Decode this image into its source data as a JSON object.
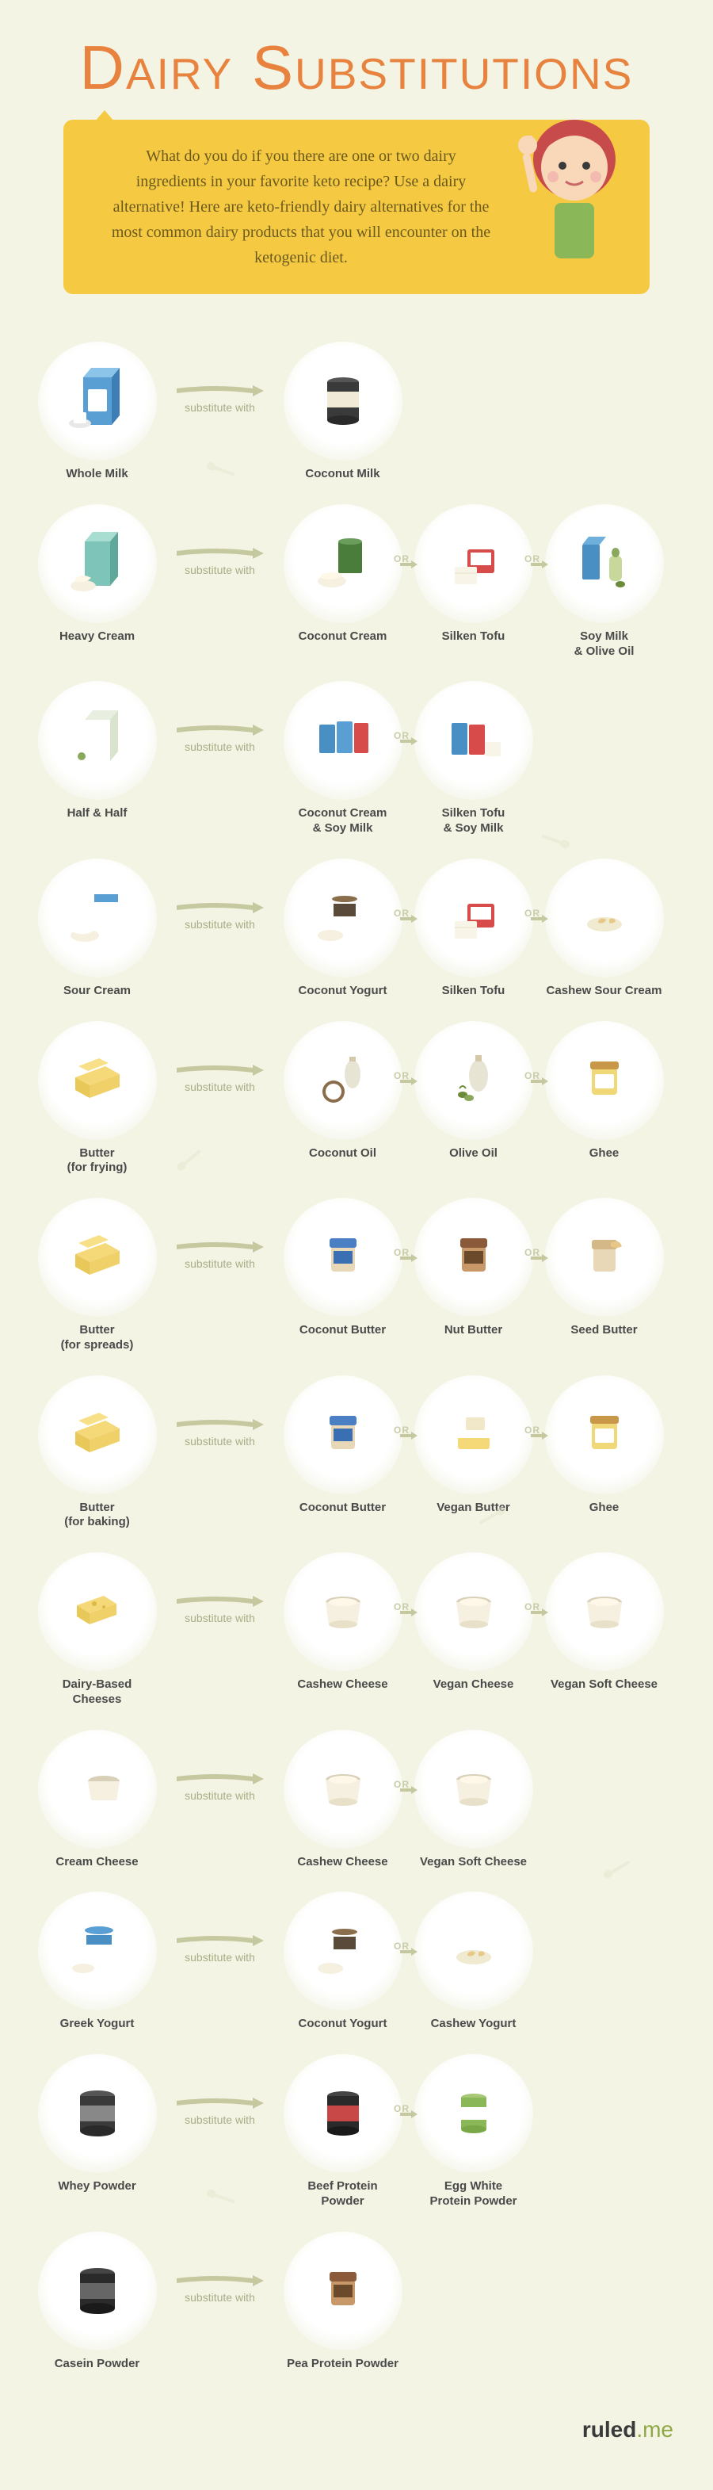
{
  "title": "Dairy Substitutions",
  "intro": "What do you do if you there are one or two dairy ingredients in your favorite keto recipe? Use a dairy alternative! Here are keto-friendly dairy alternatives for the most common dairy products that you will encounter on the ketogenic diet.",
  "arrow_label": "substitute with",
  "or_label": "OR",
  "footer_brand_a": "ruled",
  "footer_brand_b": ".me",
  "colors": {
    "bg": "#f3f4e4",
    "title": "#e8833f",
    "intro_bg": "#f5c941",
    "arrow": "#c6c99f",
    "label": "#4a4a4a"
  },
  "rows": [
    {
      "source": {
        "label": "Whole Milk",
        "icon": "milk-carton"
      },
      "subs": [
        {
          "label": "Coconut Milk",
          "icon": "can-dark"
        }
      ]
    },
    {
      "source": {
        "label": "Heavy Cream",
        "icon": "cream-carton"
      },
      "subs": [
        {
          "label": "Coconut Cream",
          "icon": "can-bowl"
        },
        {
          "label": "Silken Tofu",
          "icon": "tofu"
        },
        {
          "label": "Soy Milk\n& Olive Oil",
          "icon": "soymilk-olive"
        }
      ]
    },
    {
      "source": {
        "label": "Half & Half",
        "icon": "half-carton"
      },
      "subs": [
        {
          "label": "Coconut Cream\n& Soy Milk",
          "icon": "cans-cartons"
        },
        {
          "label": "Silken Tofu\n& Soy Milk",
          "icon": "tofu-cartons"
        }
      ]
    },
    {
      "source": {
        "label": "Sour Cream",
        "icon": "sour-cream"
      },
      "subs": [
        {
          "label": "Coconut Yogurt",
          "icon": "yogurt"
        },
        {
          "label": "Silken Tofu",
          "icon": "tofu"
        },
        {
          "label": "Cashew Sour Cream",
          "icon": "cashew-bowl"
        }
      ]
    },
    {
      "source": {
        "label": "Butter\n(for frying)",
        "icon": "butter"
      },
      "subs": [
        {
          "label": "Coconut Oil",
          "icon": "coconut-oil"
        },
        {
          "label": "Olive Oil",
          "icon": "olive-oil"
        },
        {
          "label": "Ghee",
          "icon": "ghee-jar"
        }
      ]
    },
    {
      "source": {
        "label": "Butter\n(for spreads)",
        "icon": "butter"
      },
      "subs": [
        {
          "label": "Coconut Butter",
          "icon": "jar-blue"
        },
        {
          "label": "Nut Butter",
          "icon": "jar-brown"
        },
        {
          "label": "Seed Butter",
          "icon": "jar-tan"
        }
      ]
    },
    {
      "source": {
        "label": "Butter\n(for baking)",
        "icon": "butter"
      },
      "subs": [
        {
          "label": "Coconut Butter",
          "icon": "jar-blue"
        },
        {
          "label": "Vegan Butter",
          "icon": "vegan-butter"
        },
        {
          "label": "Ghee",
          "icon": "ghee-jar"
        }
      ]
    },
    {
      "source": {
        "label": "Dairy-Based\nCheeses",
        "icon": "cheese"
      },
      "subs": [
        {
          "label": "Cashew Cheese",
          "icon": "tub"
        },
        {
          "label": "Vegan Cheese",
          "icon": "tub"
        },
        {
          "label": "Vegan Soft Cheese",
          "icon": "tub"
        }
      ]
    },
    {
      "source": {
        "label": "Cream Cheese",
        "icon": "cream-cheese"
      },
      "subs": [
        {
          "label": "Cashew Cheese",
          "icon": "tub"
        },
        {
          "label": "Vegan Soft Cheese",
          "icon": "tub"
        }
      ]
    },
    {
      "source": {
        "label": "Greek Yogurt",
        "icon": "greek-yogurt"
      },
      "subs": [
        {
          "label": "Coconut Yogurt",
          "icon": "yogurt"
        },
        {
          "label": "Cashew Yogurt",
          "icon": "cashew-bowl"
        }
      ]
    },
    {
      "source": {
        "label": "Whey Powder",
        "icon": "whey-tub"
      },
      "subs": [
        {
          "label": "Beef Protein\nPowder",
          "icon": "protein-red"
        },
        {
          "label": "Egg White\nProtein Powder",
          "icon": "protein-green"
        }
      ]
    },
    {
      "source": {
        "label": "Casein Powder",
        "icon": "casein-tub"
      },
      "subs": [
        {
          "label": "Pea Protein Powder",
          "icon": "jar-brown"
        }
      ]
    }
  ]
}
